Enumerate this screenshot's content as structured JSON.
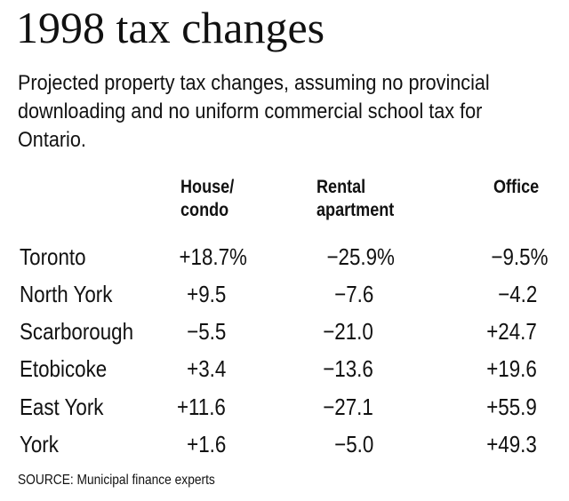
{
  "title": "1998 tax changes",
  "subtitle": "Projected property tax changes, assuming no provincial downloading and no uniform commercial school tax for Ontario.",
  "source": "SOURCE: Municipal finance experts",
  "chart_data": {
    "type": "table",
    "title": "1998 tax changes",
    "columns": [
      "House/\ncondo",
      "Rental\napartment",
      "Office"
    ],
    "rows": [
      {
        "city": "Toronto",
        "values": [
          "+18.7%",
          "−25.9%",
          "−9.5%"
        ]
      },
      {
        "city": "North York",
        "values": [
          "+9.5",
          "−7.6",
          "−4.2"
        ]
      },
      {
        "city": "Scarborough",
        "values": [
          "−5.5",
          "−21.0",
          "+24.7"
        ]
      },
      {
        "city": "Etobicoke",
        "values": [
          "+3.4",
          "−13.6",
          "+19.6"
        ]
      },
      {
        "city": "East York",
        "values": [
          "+11.6",
          "−27.1",
          "+55.9"
        ]
      },
      {
        "city": "York",
        "values": [
          "+1.6",
          "−5.0",
          "+49.3"
        ]
      }
    ]
  }
}
